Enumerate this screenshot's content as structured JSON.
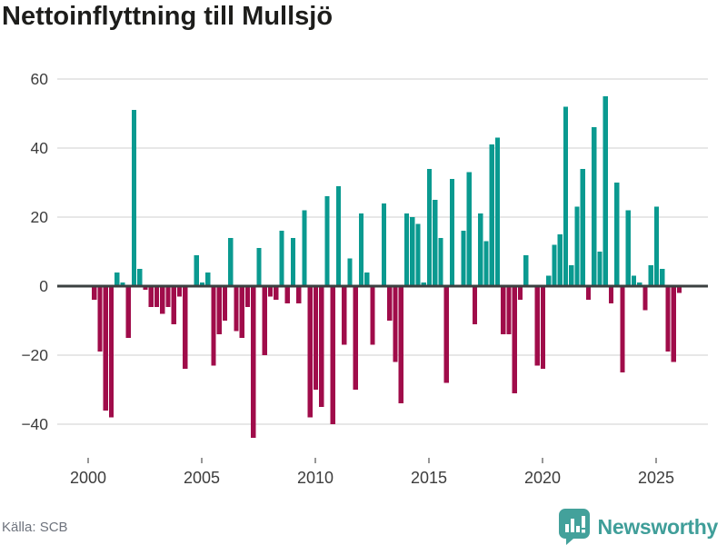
{
  "title": "Nettoinflyttning till Mullsjö",
  "source": "Källa: SCB",
  "branding": {
    "logo_text": "Newsworthy",
    "logo_icon": "bar-chart-speech-bubble-icon",
    "logo_color": "#43a19b",
    "logo_text_color": "#3f9e99"
  },
  "colors": {
    "positive_bar": "#0a9a90",
    "negative_bar": "#a00c4a",
    "zero_line": "#3b4040",
    "gridline": "#e7e7e7",
    "axis_text": "#3d3d3d",
    "tick_mark": "#777777",
    "title_text": "#1d1d1b",
    "source_text": "#6e737d",
    "background": "#ffffff"
  },
  "chart_data": {
    "type": "bar",
    "title": "Nettoinflyttning till Mullsjö",
    "xlabel": "",
    "ylabel": "",
    "frequency": "quarterly",
    "period_start": "2000 Q1",
    "period_end": "2025 Q4",
    "x_start": 2000.0,
    "x_step": 0.25,
    "x_tick_labels": [
      "2000",
      "2005",
      "2010",
      "2015",
      "2020",
      "2025"
    ],
    "y_ticks": [
      60,
      40,
      20,
      0,
      -20,
      -40
    ],
    "ylim": [
      -48,
      63
    ],
    "grid": "horizontal-only",
    "legend": "none",
    "values": [
      -4,
      -19,
      -36,
      -38,
      4,
      1,
      -15,
      51,
      5,
      -1,
      -6,
      -6,
      -8,
      -6,
      -11,
      -3,
      -24,
      0,
      9,
      1,
      4,
      -23,
      -14,
      -10,
      14,
      -13,
      -15,
      -6,
      -44,
      11,
      -20,
      -3,
      -4,
      16,
      -5,
      14,
      -5,
      22,
      -38,
      -30,
      -35,
      26,
      -40,
      29,
      -17,
      8,
      -30,
      21,
      4,
      -17,
      0,
      24,
      -10,
      -22,
      -34,
      21,
      20,
      18,
      1,
      34,
      25,
      14,
      -28,
      31,
      0,
      16,
      33,
      -11,
      21,
      13,
      41,
      43,
      -14,
      -14,
      -31,
      -4,
      9,
      0,
      -23,
      -24,
      3,
      12,
      15,
      52,
      6,
      23,
      34,
      -4,
      46,
      10,
      55,
      -5,
      30,
      -25,
      22,
      3,
      1,
      -7,
      6,
      23,
      5,
      -19,
      -22,
      -2
    ]
  }
}
